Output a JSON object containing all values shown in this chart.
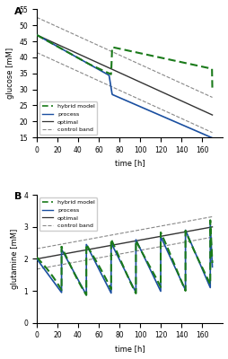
{
  "panel_A": {
    "title": "A",
    "ylabel": "glucose [mM]",
    "xlabel": "time [h]",
    "xlim": [
      0,
      180
    ],
    "ylim": [
      15,
      55
    ],
    "yticks": [
      15,
      20,
      25,
      30,
      35,
      40,
      45,
      50,
      55
    ],
    "xticks": [
      0,
      20,
      40,
      60,
      80,
      100,
      120,
      140,
      160
    ]
  },
  "panel_B": {
    "title": "B",
    "ylabel": "glutamine [mM]",
    "xlabel": "time [h]",
    "xlim": [
      0,
      180
    ],
    "ylim": [
      0,
      4
    ],
    "yticks": [
      0,
      1,
      2,
      3,
      4
    ],
    "xticks": [
      0,
      20,
      40,
      60,
      80,
      100,
      120,
      140,
      160
    ]
  },
  "colors": {
    "hybrid": "#1a7a1a",
    "process": "#1a4fa0",
    "optimal": "#333333",
    "control_band": "#888888"
  }
}
